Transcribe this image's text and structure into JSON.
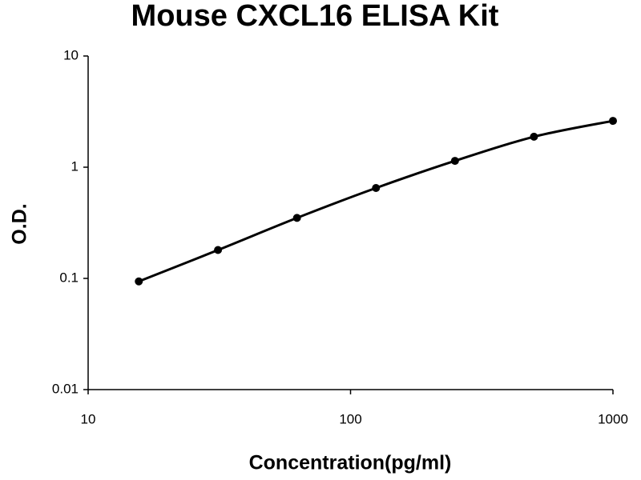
{
  "chart_data": {
    "type": "scatter-line",
    "title": "Mouse CXCL16 ELISA Kit",
    "x_label": "Concentration(pg/ml)",
    "y_label": "O.D.",
    "x": [
      15.6,
      31.25,
      62.5,
      125,
      250,
      500,
      1000
    ],
    "series": [
      {
        "color": "#000000",
        "values": [
          0.094,
          0.18,
          0.35,
          0.65,
          1.14,
          1.88,
          2.61
        ]
      }
    ],
    "x_log": true,
    "y_log": true,
    "xlim": [
      10,
      1000
    ],
    "ylim": [
      0.01,
      10
    ],
    "xticks": [
      10,
      100,
      1000
    ],
    "yticks": [
      0.01,
      0.1,
      1,
      10
    ],
    "grid": false
  }
}
